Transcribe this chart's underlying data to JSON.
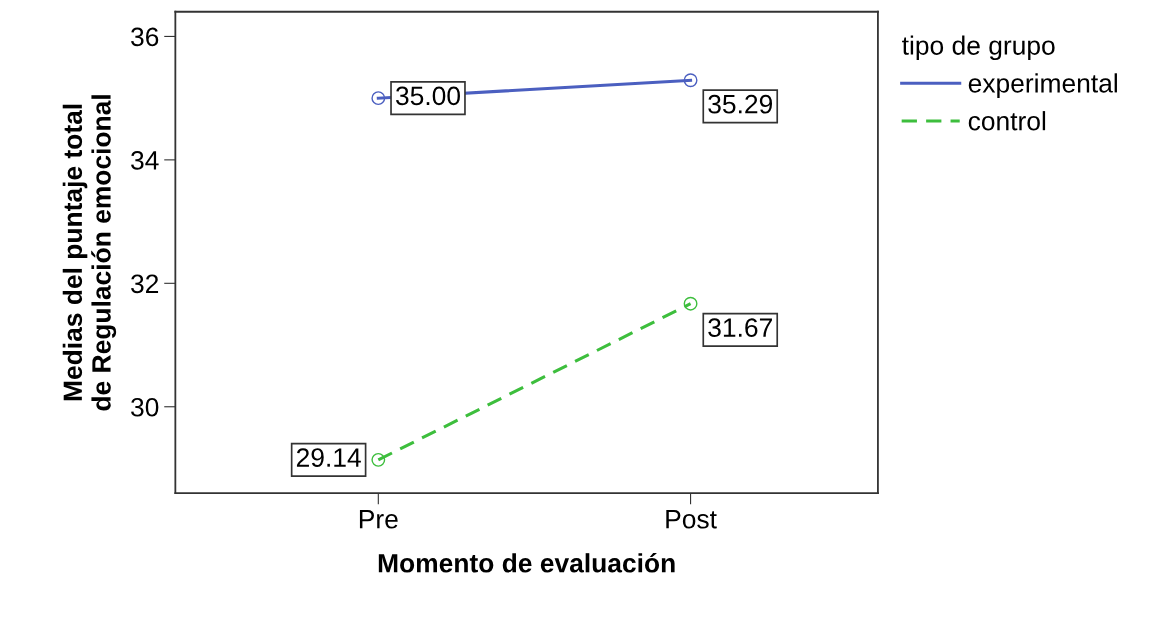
{
  "chart_data": {
    "type": "line",
    "xlabel": "Momento de evaluación",
    "ylabel": "Medias del puntaje total\nde Regulación emocional",
    "legend_title": "tipo de grupo",
    "categories": [
      "Pre",
      "Post"
    ],
    "series": [
      {
        "name": "experimental",
        "color": "#4b5fc0",
        "values": [
          35.0,
          35.29
        ],
        "value_labels": [
          "35.00",
          "35.29"
        ],
        "line_style": "solid"
      },
      {
        "name": "control",
        "color": "#3dbe3d",
        "values": [
          29.14,
          31.67
        ],
        "value_labels": [
          "29.14",
          "31.67"
        ],
        "line_style": "dashed"
      }
    ],
    "ylim": [
      28.6,
      36.4
    ],
    "yticks": [
      30,
      32,
      34,
      36
    ],
    "marker": "circle",
    "legend": "top right",
    "grid": false
  }
}
